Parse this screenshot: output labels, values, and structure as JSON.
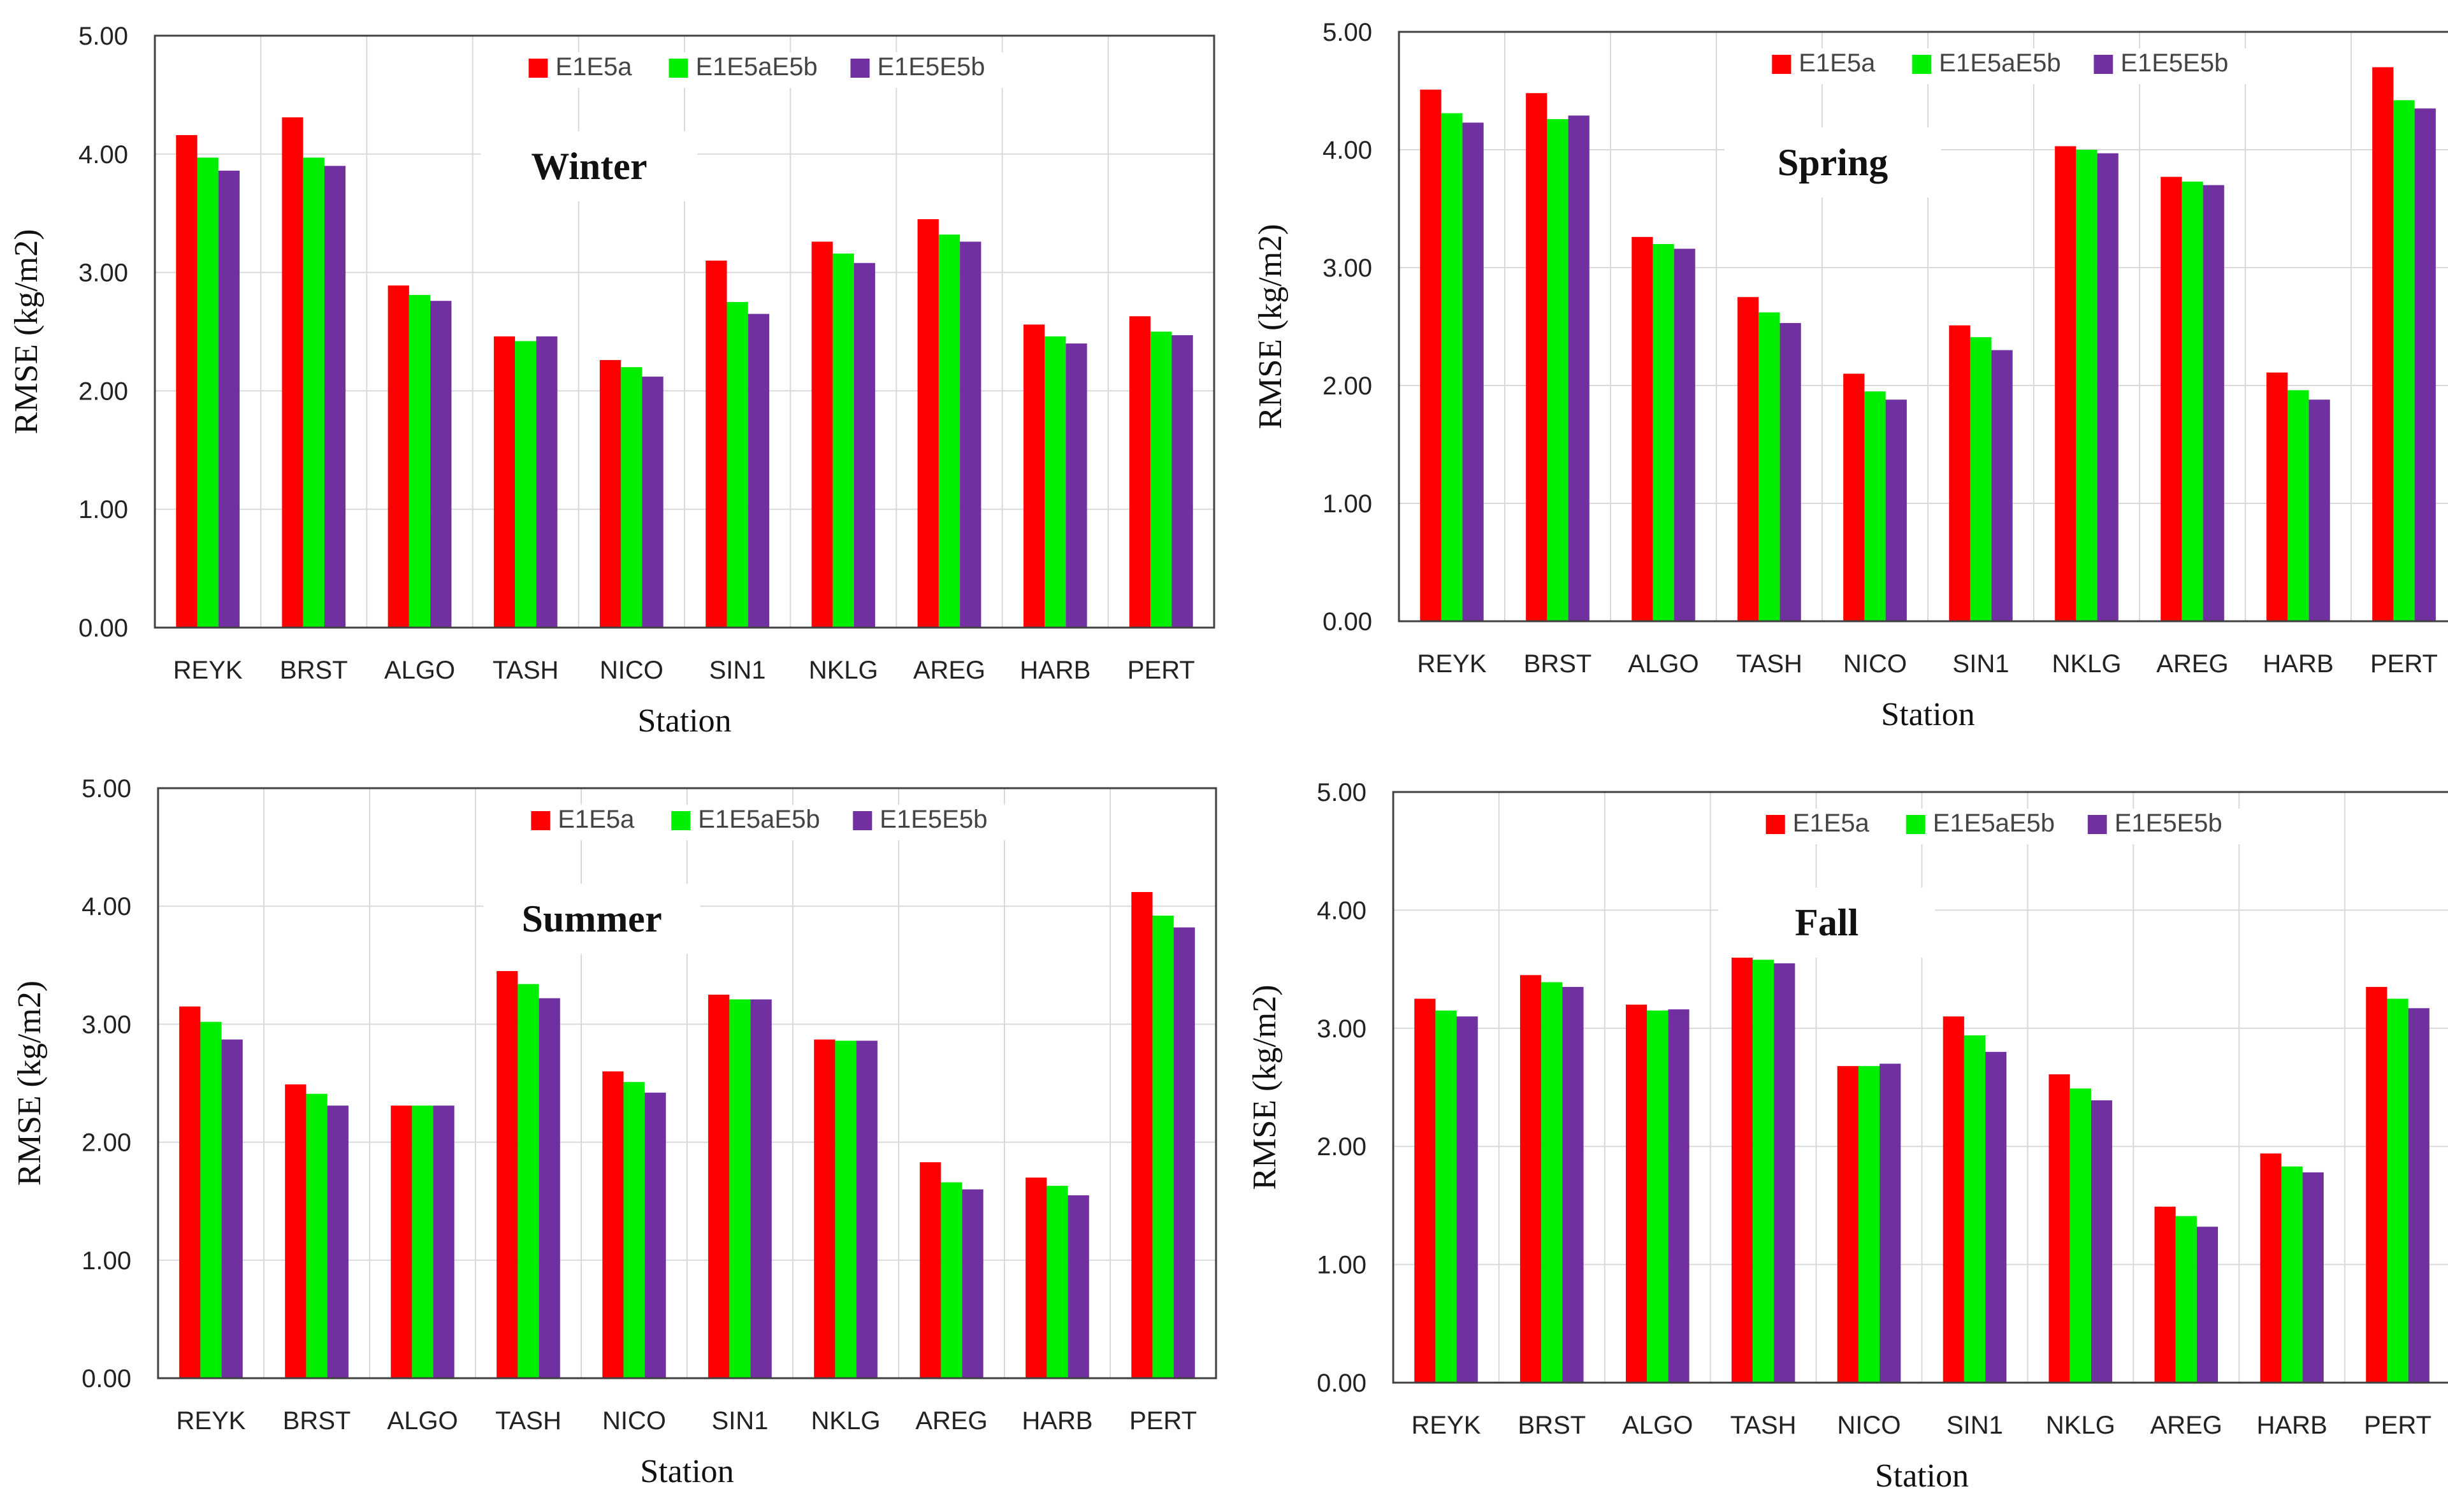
{
  "chart_data": [
    {
      "type": "bar",
      "title": "Winter",
      "xlabel": "Station",
      "ylabel": "RMSE (kg/m2)",
      "ylim": [
        0,
        5
      ],
      "yticks": [
        "0.00",
        "1.00",
        "2.00",
        "3.00",
        "4.00",
        "5.00"
      ],
      "categories": [
        "REYK",
        "BRST",
        "ALGO",
        "TASH",
        "NICO",
        "SIN1",
        "NKLG",
        "AREG",
        "HARB",
        "PERT"
      ],
      "series": [
        {
          "name": "E1E5a",
          "color": "#ff0000",
          "values": [
            4.16,
            4.31,
            2.89,
            2.46,
            2.26,
            3.1,
            3.26,
            3.45,
            2.56,
            2.63
          ]
        },
        {
          "name": "E1E5aE5b",
          "color": "#00ee00",
          "values": [
            3.97,
            3.97,
            2.81,
            2.42,
            2.2,
            2.75,
            3.16,
            3.32,
            2.46,
            2.5
          ]
        },
        {
          "name": "E1E5E5b",
          "color": "#7030a0",
          "values": [
            3.86,
            3.9,
            2.76,
            2.46,
            2.12,
            2.65,
            3.08,
            3.26,
            2.4,
            2.47
          ]
        }
      ]
    },
    {
      "type": "bar",
      "title": "Spring",
      "xlabel": "Station",
      "ylabel": "RMSE (kg/m2)",
      "ylim": [
        0,
        5
      ],
      "yticks": [
        "0.00",
        "1.00",
        "2.00",
        "3.00",
        "4.00",
        "5.00"
      ],
      "categories": [
        "REYK",
        "BRST",
        "ALGO",
        "TASH",
        "NICO",
        "SIN1",
        "NKLG",
        "AREG",
        "HARB",
        "PERT"
      ],
      "series": [
        {
          "name": "E1E5a",
          "color": "#ff0000",
          "values": [
            4.51,
            4.48,
            3.26,
            2.75,
            2.1,
            2.51,
            4.03,
            3.77,
            2.11,
            4.7
          ]
        },
        {
          "name": "E1E5aE5b",
          "color": "#00ee00",
          "values": [
            4.31,
            4.26,
            3.2,
            2.62,
            1.95,
            2.41,
            4.0,
            3.73,
            1.96,
            4.42
          ]
        },
        {
          "name": "E1E5E5b",
          "color": "#7030a0",
          "values": [
            4.23,
            4.29,
            3.16,
            2.53,
            1.88,
            2.3,
            3.97,
            3.7,
            1.88,
            4.35
          ]
        }
      ]
    },
    {
      "type": "bar",
      "title": "Summer",
      "xlabel": "Station",
      "ylabel": "RMSE (kg/m2)",
      "ylim": [
        0,
        5
      ],
      "yticks": [
        "0.00",
        "1.00",
        "2.00",
        "3.00",
        "4.00",
        "5.00"
      ],
      "categories": [
        "REYK",
        "BRST",
        "ALGO",
        "TASH",
        "NICO",
        "SIN1",
        "NKLG",
        "AREG",
        "HARB",
        "PERT"
      ],
      "series": [
        {
          "name": "E1E5a",
          "color": "#ff0000",
          "values": [
            3.15,
            2.49,
            2.31,
            3.45,
            2.6,
            3.25,
            2.87,
            1.83,
            1.7,
            4.12
          ]
        },
        {
          "name": "E1E5aE5b",
          "color": "#00ee00",
          "values": [
            3.02,
            2.41,
            2.31,
            3.34,
            2.51,
            3.21,
            2.86,
            1.66,
            1.63,
            3.92
          ]
        },
        {
          "name": "E1E5E5b",
          "color": "#7030a0",
          "values": [
            2.87,
            2.31,
            2.31,
            3.22,
            2.42,
            3.21,
            2.86,
            1.6,
            1.55,
            3.82
          ]
        }
      ]
    },
    {
      "type": "bar",
      "title": "Fall",
      "xlabel": "Station",
      "ylabel": "RMSE (kg/m2)",
      "ylim": [
        0,
        5
      ],
      "yticks": [
        "0.00",
        "1.00",
        "2.00",
        "3.00",
        "4.00",
        "5.00"
      ],
      "categories": [
        "REYK",
        "BRST",
        "ALGO",
        "TASH",
        "NICO",
        "SIN1",
        "NKLG",
        "AREG",
        "HARB",
        "PERT"
      ],
      "series": [
        {
          "name": "E1E5a",
          "color": "#ff0000",
          "values": [
            3.25,
            3.45,
            3.2,
            3.65,
            2.68,
            3.1,
            2.61,
            1.49,
            1.94,
            3.35
          ]
        },
        {
          "name": "E1E5aE5b",
          "color": "#00ee00",
          "values": [
            3.15,
            3.39,
            3.15,
            3.58,
            2.68,
            2.94,
            2.49,
            1.41,
            1.83,
            3.25
          ]
        },
        {
          "name": "E1E5E5b",
          "color": "#7030a0",
          "values": [
            3.1,
            3.35,
            3.16,
            3.55,
            2.7,
            2.8,
            2.39,
            1.32,
            1.78,
            3.17
          ]
        }
      ]
    }
  ]
}
